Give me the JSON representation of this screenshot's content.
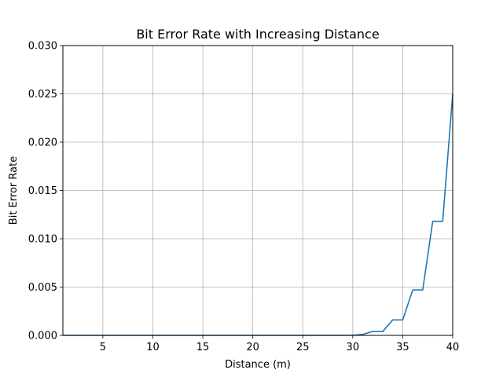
{
  "chart_data": {
    "type": "line",
    "title": "Bit Error Rate with Increasing Distance",
    "xlabel": "Distance (m)",
    "ylabel": "Bit Error Rate",
    "xlim": [
      1,
      40
    ],
    "ylim": [
      0,
      0.03
    ],
    "xticks": [
      5,
      10,
      15,
      20,
      25,
      30,
      35,
      40
    ],
    "yticks": [
      "0.000",
      "0.005",
      "0.010",
      "0.015",
      "0.020",
      "0.025",
      "0.030"
    ],
    "grid": true,
    "series": [
      {
        "color": "#1f77b4",
        "x": [
          1,
          2,
          3,
          4,
          5,
          6,
          7,
          8,
          9,
          10,
          11,
          12,
          13,
          14,
          15,
          16,
          17,
          18,
          19,
          20,
          21,
          22,
          23,
          24,
          25,
          26,
          27,
          28,
          29,
          30,
          31,
          32,
          33,
          34,
          35,
          36,
          37,
          38,
          39,
          40
        ],
        "y": [
          0,
          0,
          0,
          0,
          0,
          0,
          0,
          0,
          0,
          0,
          0,
          0,
          0,
          0,
          0,
          0,
          0,
          0,
          0,
          0,
          0,
          0,
          0,
          0,
          0,
          0,
          0,
          0,
          0,
          2e-05,
          0.0001,
          0.0004,
          0.0004,
          0.0016,
          0.0016,
          0.0047,
          0.0047,
          0.0118,
          0.0118,
          0.025
        ]
      }
    ]
  }
}
